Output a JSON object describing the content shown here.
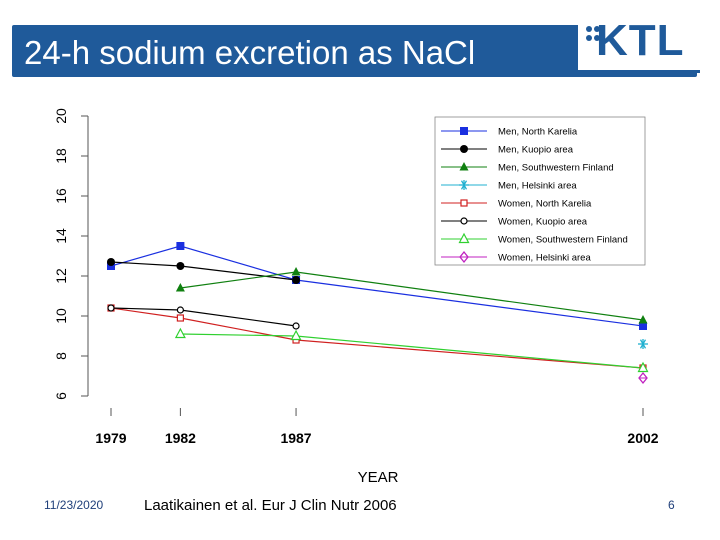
{
  "slide": {
    "title": "24-h sodium excretion as NaCl",
    "logo_text": "KTL",
    "date": "11/23/2020",
    "citation": "Laatikainen et al. Eur J Clin Nutr 2006",
    "page_number": "6"
  },
  "colors": {
    "title_bg": "#1f5a9a",
    "title_text": "#ffffff"
  },
  "chart_data": {
    "type": "line",
    "title": "",
    "xlabel": "YEAR",
    "ylabel": "",
    "x_ticks": [
      1979,
      1982,
      1987,
      2002
    ],
    "y_ticks": [
      6,
      8,
      10,
      12,
      14,
      16,
      18,
      20
    ],
    "xlim": [
      1979,
      2002
    ],
    "ylim": [
      6,
      20
    ],
    "legend_position": "top-right",
    "series": [
      {
        "name": "Men, North Karelia",
        "color": "#1a2fe0",
        "marker": "square-filled",
        "points": [
          [
            1979,
            12.5
          ],
          [
            1982,
            13.5
          ],
          [
            1987,
            11.8
          ],
          [
            2002,
            9.5
          ]
        ]
      },
      {
        "name": "Men, Kuopio area",
        "color": "#000000",
        "marker": "circle-filled",
        "points": [
          [
            1979,
            12.7
          ],
          [
            1982,
            12.5
          ],
          [
            1987,
            11.8
          ]
        ]
      },
      {
        "name": "Men, Southwestern Finland",
        "color": "#108010",
        "marker": "triangle-filled",
        "points": [
          [
            1982,
            11.4
          ],
          [
            1987,
            12.2
          ],
          [
            2002,
            9.8
          ]
        ]
      },
      {
        "name": "Men, Helsinki area",
        "color": "#20b0d0",
        "marker": "asterisk",
        "points": [
          [
            2002,
            8.6
          ]
        ]
      },
      {
        "name": "Women, North Karelia",
        "color": "#d02020",
        "marker": "square-open",
        "points": [
          [
            1979,
            10.4
          ],
          [
            1982,
            9.9
          ],
          [
            1987,
            8.8
          ],
          [
            2002,
            7.4
          ]
        ]
      },
      {
        "name": "Women, Kuopio area",
        "color": "#000000",
        "marker": "circle-open",
        "points": [
          [
            1979,
            10.4
          ],
          [
            1982,
            10.3
          ],
          [
            1987,
            9.5
          ]
        ]
      },
      {
        "name": "Women, Southwestern Finland",
        "color": "#30d030",
        "marker": "triangle-open",
        "points": [
          [
            1982,
            9.1
          ],
          [
            1987,
            9.0
          ],
          [
            2002,
            7.4
          ]
        ]
      },
      {
        "name": "Women, Helsinki area",
        "color": "#c020c0",
        "marker": "diamond-open",
        "points": [
          [
            2002,
            6.9
          ]
        ]
      }
    ]
  }
}
